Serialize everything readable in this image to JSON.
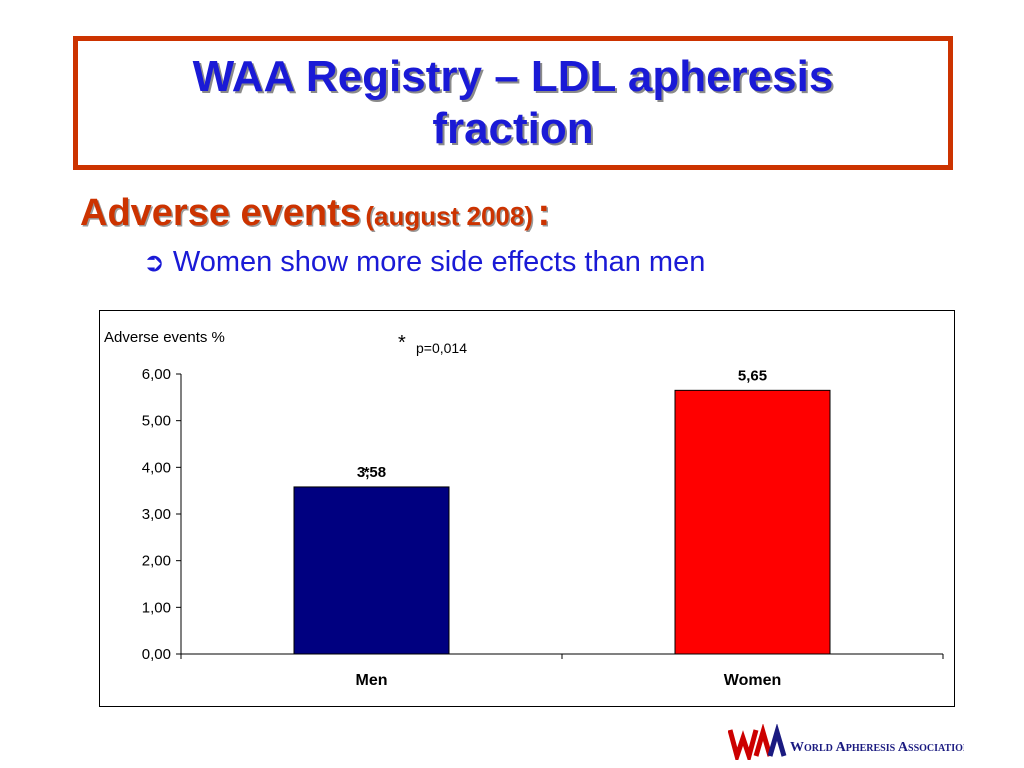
{
  "slide": {
    "title_line1": "WAA Registry – LDL apheresis",
    "title_line2": "fraction",
    "subtitle_main": "Adverse events",
    "subtitle_paren": "(august 2008)",
    "subtitle_colon": ":",
    "bullet_arrow": "➲",
    "bullet_text": "Women show more side effects than men",
    "logo_text": "World Apheresis Association",
    "colors": {
      "title": "#1a1ad6",
      "subtitle": "#cc3300",
      "frame": "#cc3300"
    }
  },
  "chart_data": {
    "type": "bar",
    "ylabel": "Adverse events %",
    "categories": [
      "Men",
      "Women"
    ],
    "values": [
      3.58,
      5.65
    ],
    "value_labels": [
      "3,58",
      "5,65"
    ],
    "bar_colors": [
      "#000080",
      "#ff0000"
    ],
    "ylim": [
      0,
      6
    ],
    "yticks": [
      0,
      1,
      2,
      3,
      4,
      5,
      6
    ],
    "ytick_labels": [
      "0,00",
      "1,00",
      "2,00",
      "3,00",
      "4,00",
      "5,00",
      "6,00"
    ],
    "annotation_star": "*",
    "annotation_text": "p=0,014",
    "bar_star": "*",
    "grid": false
  }
}
